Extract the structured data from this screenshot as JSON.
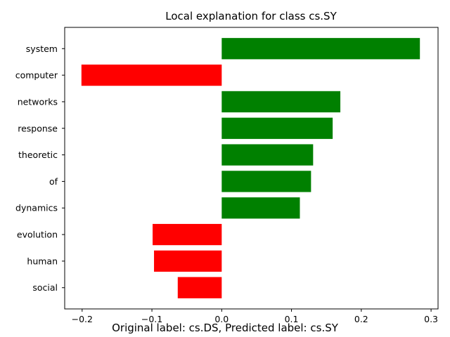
{
  "chart_data": {
    "type": "bar",
    "orientation": "horizontal",
    "title": "Local explanation for class cs.SY",
    "xlabel": "",
    "ylabel": "",
    "categories": [
      "system",
      "computer",
      "networks",
      "response",
      "theoretic",
      "of",
      "dynamics",
      "evolution",
      "human",
      "social"
    ],
    "values": [
      0.284,
      -0.201,
      0.17,
      0.159,
      0.131,
      0.128,
      0.112,
      -0.099,
      -0.097,
      -0.063
    ],
    "xlim": [
      -0.225,
      0.31
    ],
    "xticks": [
      -0.2,
      -0.1,
      0.0,
      0.1,
      0.2,
      0.3
    ],
    "xtick_labels": [
      "−0.2",
      "−0.1",
      "0.0",
      "0.1",
      "0.2",
      "0.3"
    ],
    "grid": false,
    "colors": {
      "positive": "#008000",
      "negative": "#ff0000"
    }
  },
  "caption": "Original label: cs.DS, Predicted label: cs.SY"
}
